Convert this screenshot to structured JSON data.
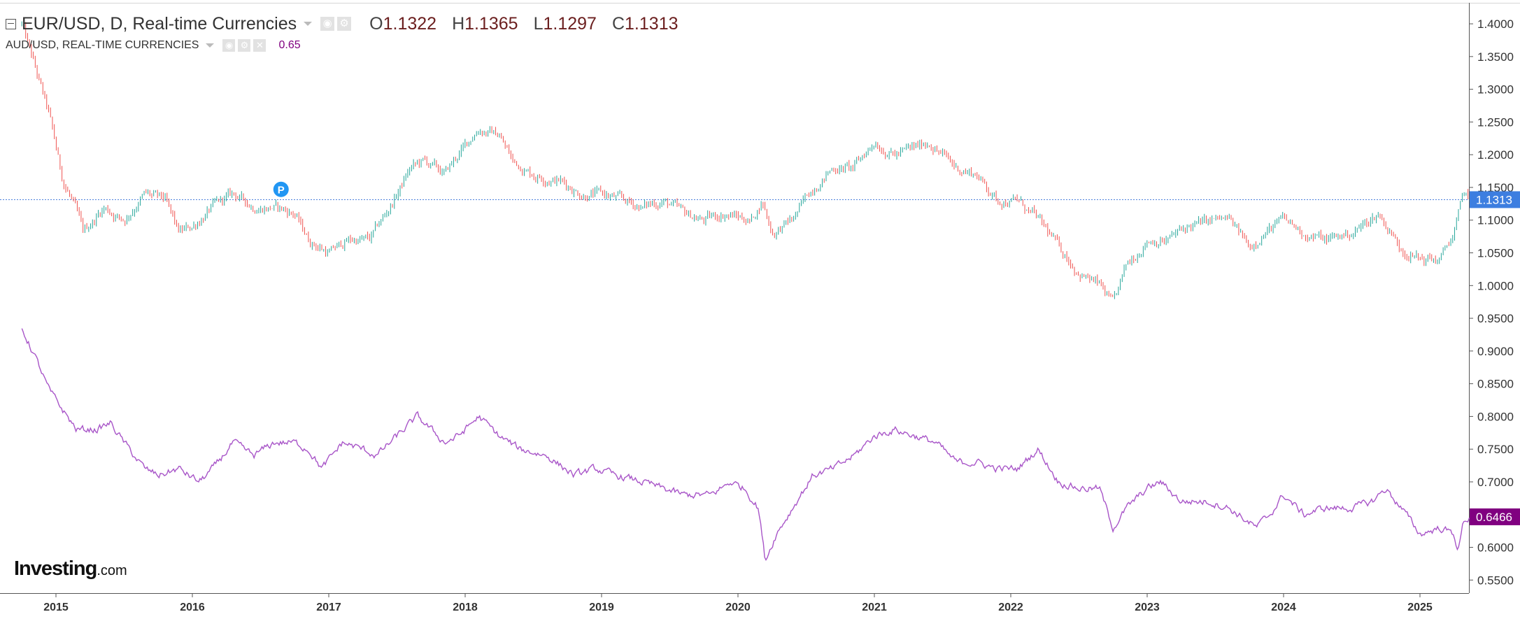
{
  "legend": {
    "main_title": "EUR/USD, D, Real-time Currencies",
    "open_label": "O",
    "open": "1.1322",
    "high_label": "H",
    "high": "1.1365",
    "low_label": "L",
    "low": "1.1297",
    "close_label": "C",
    "close": "1.1313",
    "sub_title": "AUD/USD, REAL-TIME CURRENCIES",
    "sub_value": "0.65"
  },
  "logo": {
    "brand": "Investing",
    "suffix": ".com"
  },
  "colors": {
    "eurusd_up": "#26a69a",
    "eurusd_down": "#ef5350",
    "audusd_line": "#a855c8",
    "eurusd_badge": "#3d7ee0",
    "audusd_badge": "#800080",
    "price_line": "#4a7fdc",
    "marker": "#2196f3"
  },
  "chart_data": {
    "type": "line",
    "x_range": [
      "2014-10",
      "2025-05"
    ],
    "x_tick_labels": [
      "2015",
      "2016",
      "2017",
      "2018",
      "2019",
      "2020",
      "2021",
      "2022",
      "2023",
      "2024",
      "2025"
    ],
    "y_range": [
      0.53,
      1.43
    ],
    "y_tick_labels": [
      "1.4000",
      "1.3500",
      "1.3000",
      "1.2500",
      "1.2000",
      "1.1500",
      "1.1000",
      "1.0500",
      "1.0000",
      "0.9500",
      "0.9000",
      "0.8500",
      "0.8000",
      "0.7500",
      "0.7000",
      "0.6500",
      "0.6000",
      "0.5500"
    ],
    "grid": false,
    "price_line_value": 1.1313,
    "marker": {
      "label": "P",
      "x": 2016.65,
      "y": 1.147
    },
    "series": [
      {
        "name": "EUR/USD, D, Real-time Currencies",
        "style": "candlestick",
        "last_value_label": "1.1313",
        "points": [
          [
            2014.75,
            1.4
          ],
          [
            2014.85,
            1.33
          ],
          [
            2014.95,
            1.26
          ],
          [
            2015.05,
            1.16
          ],
          [
            2015.12,
            1.13
          ],
          [
            2015.2,
            1.08
          ],
          [
            2015.35,
            1.12
          ],
          [
            2015.5,
            1.1
          ],
          [
            2015.65,
            1.14
          ],
          [
            2015.8,
            1.13
          ],
          [
            2015.9,
            1.08
          ],
          [
            2016.0,
            1.09
          ],
          [
            2016.15,
            1.12
          ],
          [
            2016.3,
            1.14
          ],
          [
            2016.45,
            1.12
          ],
          [
            2016.6,
            1.12
          ],
          [
            2016.75,
            1.11
          ],
          [
            2016.85,
            1.07
          ],
          [
            2017.0,
            1.05
          ],
          [
            2017.15,
            1.07
          ],
          [
            2017.3,
            1.07
          ],
          [
            2017.45,
            1.12
          ],
          [
            2017.6,
            1.18
          ],
          [
            2017.7,
            1.19
          ],
          [
            2017.85,
            1.17
          ],
          [
            2017.95,
            1.2
          ],
          [
            2018.1,
            1.24
          ],
          [
            2018.25,
            1.23
          ],
          [
            2018.35,
            1.19
          ],
          [
            2018.5,
            1.17
          ],
          [
            2018.7,
            1.16
          ],
          [
            2018.85,
            1.14
          ],
          [
            2019.0,
            1.14
          ],
          [
            2019.15,
            1.13
          ],
          [
            2019.3,
            1.12
          ],
          [
            2019.45,
            1.13
          ],
          [
            2019.6,
            1.11
          ],
          [
            2019.75,
            1.1
          ],
          [
            2019.9,
            1.11
          ],
          [
            2020.1,
            1.1
          ],
          [
            2020.18,
            1.13
          ],
          [
            2020.25,
            1.08
          ],
          [
            2020.4,
            1.1
          ],
          [
            2020.55,
            1.15
          ],
          [
            2020.7,
            1.18
          ],
          [
            2020.85,
            1.18
          ],
          [
            2021.0,
            1.22
          ],
          [
            2021.15,
            1.2
          ],
          [
            2021.3,
            1.21
          ],
          [
            2021.4,
            1.22
          ],
          [
            2021.6,
            1.18
          ],
          [
            2021.75,
            1.17
          ],
          [
            2021.9,
            1.13
          ],
          [
            2022.05,
            1.13
          ],
          [
            2022.2,
            1.1
          ],
          [
            2022.35,
            1.06
          ],
          [
            2022.5,
            1.02
          ],
          [
            2022.65,
            1.0
          ],
          [
            2022.75,
            0.97
          ],
          [
            2022.85,
            1.03
          ],
          [
            2023.0,
            1.07
          ],
          [
            2023.15,
            1.07
          ],
          [
            2023.3,
            1.09
          ],
          [
            2023.5,
            1.1
          ],
          [
            2023.6,
            1.1
          ],
          [
            2023.75,
            1.06
          ],
          [
            2023.85,
            1.08
          ],
          [
            2024.0,
            1.1
          ],
          [
            2024.15,
            1.08
          ],
          [
            2024.3,
            1.07
          ],
          [
            2024.5,
            1.08
          ],
          [
            2024.7,
            1.11
          ],
          [
            2024.85,
            1.06
          ],
          [
            2025.0,
            1.04
          ],
          [
            2025.15,
            1.04
          ],
          [
            2025.25,
            1.08
          ],
          [
            2025.32,
            1.14
          ],
          [
            2025.38,
            1.1313
          ]
        ]
      },
      {
        "name": "AUD/USD, REAL-TIME CURRENCIES",
        "style": "line",
        "last_value_label": "0.6466",
        "points": [
          [
            2014.75,
            0.935
          ],
          [
            2014.85,
            0.89
          ],
          [
            2014.95,
            0.84
          ],
          [
            2015.05,
            0.81
          ],
          [
            2015.15,
            0.78
          ],
          [
            2015.3,
            0.78
          ],
          [
            2015.4,
            0.79
          ],
          [
            2015.5,
            0.76
          ],
          [
            2015.65,
            0.72
          ],
          [
            2015.75,
            0.71
          ],
          [
            2015.9,
            0.72
          ],
          [
            2016.05,
            0.7
          ],
          [
            2016.15,
            0.72
          ],
          [
            2016.3,
            0.76
          ],
          [
            2016.45,
            0.74
          ],
          [
            2016.6,
            0.76
          ],
          [
            2016.75,
            0.76
          ],
          [
            2016.85,
            0.75
          ],
          [
            2016.95,
            0.72
          ],
          [
            2017.1,
            0.76
          ],
          [
            2017.25,
            0.75
          ],
          [
            2017.35,
            0.74
          ],
          [
            2017.5,
            0.77
          ],
          [
            2017.65,
            0.8
          ],
          [
            2017.85,
            0.76
          ],
          [
            2017.95,
            0.77
          ],
          [
            2018.1,
            0.8
          ],
          [
            2018.25,
            0.77
          ],
          [
            2018.4,
            0.75
          ],
          [
            2018.6,
            0.74
          ],
          [
            2018.8,
            0.71
          ],
          [
            2018.95,
            0.72
          ],
          [
            2019.1,
            0.71
          ],
          [
            2019.3,
            0.7
          ],
          [
            2019.45,
            0.69
          ],
          [
            2019.6,
            0.68
          ],
          [
            2019.8,
            0.68
          ],
          [
            2019.95,
            0.7
          ],
          [
            2020.05,
            0.69
          ],
          [
            2020.15,
            0.66
          ],
          [
            2020.2,
            0.58
          ],
          [
            2020.28,
            0.62
          ],
          [
            2020.4,
            0.66
          ],
          [
            2020.55,
            0.71
          ],
          [
            2020.7,
            0.72
          ],
          [
            2020.85,
            0.74
          ],
          [
            2021.0,
            0.77
          ],
          [
            2021.15,
            0.78
          ],
          [
            2021.3,
            0.77
          ],
          [
            2021.45,
            0.76
          ],
          [
            2021.6,
            0.73
          ],
          [
            2021.75,
            0.73
          ],
          [
            2021.9,
            0.72
          ],
          [
            2022.05,
            0.72
          ],
          [
            2022.2,
            0.75
          ],
          [
            2022.35,
            0.7
          ],
          [
            2022.5,
            0.69
          ],
          [
            2022.65,
            0.69
          ],
          [
            2022.75,
            0.63
          ],
          [
            2022.85,
            0.66
          ],
          [
            2023.0,
            0.69
          ],
          [
            2023.1,
            0.7
          ],
          [
            2023.25,
            0.67
          ],
          [
            2023.45,
            0.67
          ],
          [
            2023.6,
            0.66
          ],
          [
            2023.8,
            0.63
          ],
          [
            2023.9,
            0.65
          ],
          [
            2024.0,
            0.68
          ],
          [
            2024.15,
            0.65
          ],
          [
            2024.3,
            0.66
          ],
          [
            2024.5,
            0.66
          ],
          [
            2024.65,
            0.67
          ],
          [
            2024.75,
            0.69
          ],
          [
            2024.9,
            0.65
          ],
          [
            2025.0,
            0.62
          ],
          [
            2025.15,
            0.63
          ],
          [
            2025.25,
            0.62
          ],
          [
            2025.28,
            0.595
          ],
          [
            2025.32,
            0.64
          ],
          [
            2025.38,
            0.6466
          ]
        ]
      }
    ]
  }
}
